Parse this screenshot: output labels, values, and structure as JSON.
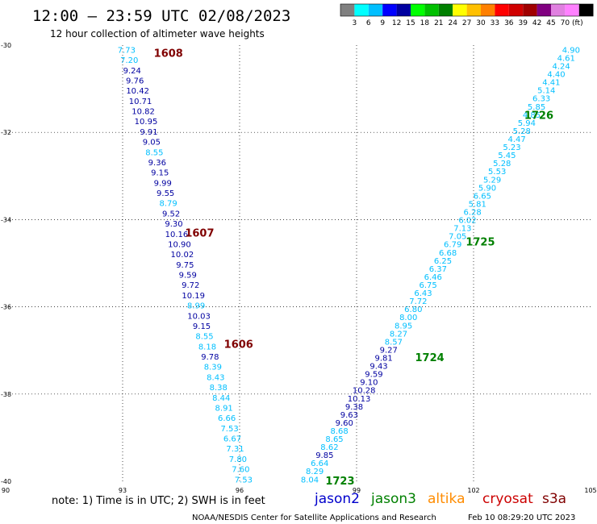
{
  "header": {
    "title": "12:00 — 23:59 UTC 02/08/2023",
    "subtitle": "12 hour collection of altimeter wave heights"
  },
  "colorbar": {
    "colors": [
      "#808080",
      "#00ffff",
      "#00bfff",
      "#0000ff",
      "#0000a0",
      "#00ff00",
      "#00c000",
      "#008000",
      "#ffff00",
      "#ffc000",
      "#ff8000",
      "#ff0000",
      "#d00000",
      "#a00000",
      "#800080",
      "#e080e0",
      "#ff80ff",
      "#000000"
    ],
    "labels": [
      "3",
      "6",
      "9",
      "12",
      "15",
      "18",
      "21",
      "24",
      "27",
      "30",
      "33",
      "36",
      "39",
      "42",
      "45",
      "70"
    ],
    "unit": "(ft)"
  },
  "chart_data": {
    "type": "scatter",
    "title": "12:00 — 23:59 UTC 02/08/2023",
    "subtitle": "12 hour collection of altimeter wave heights",
    "xlim": [
      90,
      105
    ],
    "ylim": [
      -40,
      -30
    ],
    "x_ticks": [
      "90",
      "93",
      "96",
      "99",
      "102",
      "105"
    ],
    "y_ticks": [
      "-30",
      "-32",
      "-34",
      "-36",
      "-38",
      "-40"
    ],
    "grid": true,
    "series": [
      {
        "pass_values": [
          "7.73",
          "7.20",
          "9.24",
          "9.76",
          "10.42",
          "10.71",
          "10.82",
          "10.95",
          "9.91",
          "9.05",
          "8.55",
          "9.36",
          "9.15",
          "9.99",
          "9.55",
          "8.79",
          "9.52",
          "9.30",
          "10.16",
          "10.90",
          "10.02",
          "9.75",
          "9.59",
          "9.72",
          "10.19",
          "8.99",
          "10.03",
          "9.15",
          "8.55",
          "8.18",
          "9.78",
          "8.39",
          "8.43",
          "8.38",
          "8.44",
          "8.91",
          "6.66",
          "7.53",
          "6.67",
          "7.31",
          "7.80",
          "7.60",
          "7.53"
        ],
        "start": [
          93.1,
          -30.1
        ],
        "end": [
          96.1,
          -39.95
        ],
        "time_labels": [
          {
            "text": "1608",
            "at": [
              93.8,
              -30.18
            ]
          },
          {
            "text": "1607",
            "at": [
              94.6,
              -34.3
            ]
          },
          {
            "text": "1606",
            "at": [
              95.6,
              -36.85
            ]
          }
        ]
      },
      {
        "pass_values": [
          "8.04",
          "8.29",
          "6.64",
          "9.85",
          "8.62",
          "8.65",
          "8.68",
          "9.60",
          "9.63",
          "9.38",
          "10.13",
          "10.28",
          "9.10",
          "9.59",
          "9.43",
          "9.81",
          "9.27",
          "8.57",
          "8.27",
          "8.95",
          "8.00",
          "6.80",
          "7.72",
          "6.43",
          "6.75",
          "6.46",
          "6.37",
          "6.25",
          "6.68",
          "6.79",
          "7.05",
          "7.13",
          "6.02",
          "6.28",
          "5.81",
          "6.65",
          "5.90",
          "5.29",
          "5.53",
          "5.28",
          "5.45",
          "5.23",
          "4.47",
          "5.28",
          "5.94",
          "4.85",
          "5.85",
          "6.33",
          "5.14",
          "4.41",
          "4.40",
          "4.24",
          "4.61",
          "4.90"
        ],
        "start": [
          97.8,
          -39.95
        ],
        "end": [
          104.5,
          -30.1
        ],
        "time_labels": [
          {
            "text": "1723",
            "at": [
              98.2,
              -39.98
            ]
          },
          {
            "text": "1724",
            "at": [
              100.5,
              -37.15
            ]
          },
          {
            "text": "1725",
            "at": [
              101.8,
              -34.5
            ]
          },
          {
            "text": "1726",
            "at": [
              103.3,
              -31.6
            ]
          }
        ]
      }
    ]
  },
  "note": "note:  1) Time is in UTC; 2) SWH is in feet",
  "legend": [
    {
      "name": "jason2",
      "color": "#0000cc"
    },
    {
      "name": "jason3",
      "color": "#008000"
    },
    {
      "name": "altika",
      "color": "#ff8c00"
    },
    {
      "name": "cryosat",
      "color": "#cc0000"
    },
    {
      "name": "s3a",
      "color": "#800000"
    }
  ],
  "footer": {
    "agency": "NOAA/NESDIS Center for Satellite Applications and Research",
    "timestamp": "Feb 10 08:29:20 UTC 2023"
  },
  "colors": {
    "low_pass_label": "#800000",
    "high_pass_label": "#008000",
    "swh_light": "#00bfff",
    "swh_dark": "#0000a0"
  }
}
